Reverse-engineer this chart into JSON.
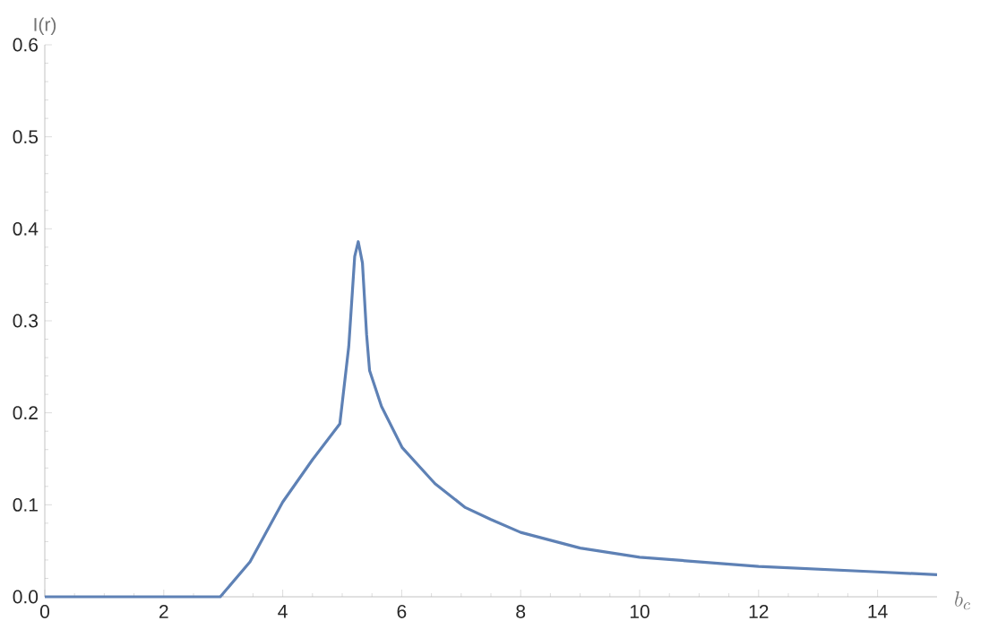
{
  "chart_data": {
    "type": "line",
    "xlabel": "b_c",
    "ylabel": "I(r)",
    "x": [
      0,
      1,
      2,
      2.95,
      3.45,
      4.0,
      4.5,
      4.96,
      5.11,
      5.21,
      5.27,
      5.34,
      5.41,
      5.46,
      5.66,
      6.01,
      6.56,
      7.07,
      7.5,
      8,
      9,
      10,
      12,
      14,
      15
    ],
    "series": [
      {
        "color": "#5e81b5",
        "values": [
          0,
          0,
          0,
          0,
          0.038,
          0.103,
          0.149,
          0.188,
          0.272,
          0.37,
          0.386,
          0.363,
          0.285,
          0.246,
          0.207,
          0.162,
          0.123,
          0.097,
          0.084,
          0.07,
          0.053,
          0.043,
          0.033,
          0.027,
          0.024
        ]
      }
    ],
    "xlim": [
      0,
      15
    ],
    "ylim": [
      0,
      0.6
    ],
    "xticks": [
      0,
      2,
      4,
      6,
      8,
      10,
      12,
      14
    ],
    "yticks": [
      {
        "value": 0,
        "label": "0.0"
      },
      0.1,
      0.2,
      0.3,
      0.4,
      0.5,
      0.6
    ],
    "grid": false,
    "marker": "none",
    "line_style": "solid"
  }
}
